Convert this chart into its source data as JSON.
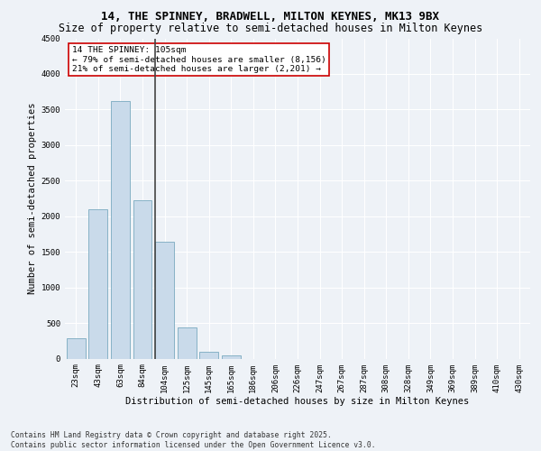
{
  "title1": "14, THE SPINNEY, BRADWELL, MILTON KEYNES, MK13 9BX",
  "title2": "Size of property relative to semi-detached houses in Milton Keynes",
  "xlabel": "Distribution of semi-detached houses by size in Milton Keynes",
  "ylabel": "Number of semi-detached properties",
  "categories": [
    "23sqm",
    "43sqm",
    "63sqm",
    "84sqm",
    "104sqm",
    "125sqm",
    "145sqm",
    "165sqm",
    "186sqm",
    "206sqm",
    "226sqm",
    "247sqm",
    "267sqm",
    "287sqm",
    "308sqm",
    "328sqm",
    "349sqm",
    "369sqm",
    "389sqm",
    "410sqm",
    "430sqm"
  ],
  "values": [
    280,
    2100,
    3620,
    2230,
    1640,
    440,
    100,
    50,
    0,
    0,
    0,
    0,
    0,
    0,
    0,
    0,
    0,
    0,
    0,
    0,
    0
  ],
  "bar_color": "#c9daea",
  "bar_edge_color": "#7aaabf",
  "property_line_index": 3.575,
  "property_label": "14 THE SPINNEY: 105sqm",
  "annotation_line1": "← 79% of semi-detached houses are smaller (8,156)",
  "annotation_line2": "21% of semi-detached houses are larger (2,201) →",
  "annotation_box_color": "#ffffff",
  "annotation_box_edge": "#cc0000",
  "ylim": [
    0,
    4500
  ],
  "yticks": [
    0,
    500,
    1000,
    1500,
    2000,
    2500,
    3000,
    3500,
    4000,
    4500
  ],
  "bg_color": "#eef2f7",
  "grid_color": "#ffffff",
  "footer_line1": "Contains HM Land Registry data © Crown copyright and database right 2025.",
  "footer_line2": "Contains public sector information licensed under the Open Government Licence v3.0.",
  "title_fontsize": 9,
  "subtitle_fontsize": 8.5,
  "axis_label_fontsize": 7.5,
  "tick_fontsize": 6.5,
  "annotation_fontsize": 6.8,
  "footer_fontsize": 5.8
}
